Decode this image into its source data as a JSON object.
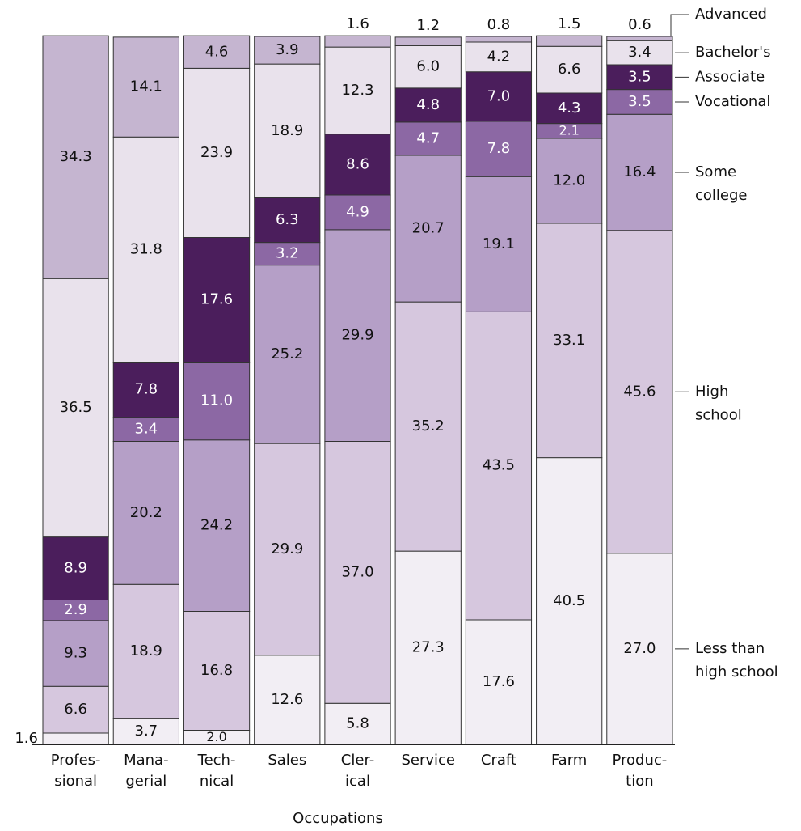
{
  "chart_data": {
    "type": "bar",
    "stacked": true,
    "x_label": "Occupations",
    "categories": [
      "Profes-\nsional",
      "Mana-\ngerial",
      "Tech-\nnical",
      "Sales",
      "Cler-\nical",
      "Service",
      "Craft",
      "Farm",
      "Produc-\ntion"
    ],
    "ylim": [
      0,
      100
    ],
    "series": [
      {
        "name": "Less than high school",
        "color": "#f2eef4",
        "values": [
          1.6,
          3.7,
          2.0,
          12.6,
          5.8,
          27.3,
          17.6,
          40.5,
          27.0
        ],
        "value_labels": [
          "1.6",
          "3.7",
          "2.0",
          "12.6",
          "5.8",
          "27.3",
          "17.6",
          "40.5",
          "27.0"
        ]
      },
      {
        "name": "High school",
        "color": "#d6c7de",
        "values": [
          6.6,
          18.9,
          16.8,
          29.9,
          37.0,
          35.2,
          43.5,
          33.1,
          45.6
        ],
        "value_labels": [
          "6.6",
          "18.9",
          "16.8",
          "29.9",
          "37.0",
          "35.2",
          "43.5",
          "33.1",
          "45.6"
        ]
      },
      {
        "name": "Some college",
        "color": "#b59fc7",
        "values": [
          9.3,
          20.2,
          24.2,
          25.2,
          29.9,
          20.7,
          19.1,
          12.0,
          16.4
        ],
        "value_labels": [
          "9.3",
          "20.2",
          "24.2",
          "25.2",
          "29.9",
          "20.7",
          "19.1",
          "12.0",
          "16.4"
        ]
      },
      {
        "name": "Vocational",
        "color": "#8c68a4",
        "values": [
          2.9,
          3.4,
          11.0,
          3.2,
          4.9,
          4.7,
          7.8,
          2.1,
          3.5
        ],
        "value_labels": [
          "2.9",
          "3.4",
          "11.0",
          "3.2",
          "4.9",
          "4.7",
          "7.8",
          "2.1",
          "3.5"
        ]
      },
      {
        "name": "Associate",
        "color": "#4b1e5c",
        "values": [
          8.9,
          7.8,
          17.6,
          6.3,
          8.6,
          4.8,
          7.0,
          4.3,
          3.5
        ],
        "value_labels": [
          "8.9",
          "7.8",
          "17.6",
          "6.3",
          "8.6",
          "4.8",
          "7.0",
          "4.3",
          "3.5"
        ]
      },
      {
        "name": "Bachelor's",
        "color": "#e9e2ec",
        "values": [
          36.5,
          31.8,
          23.9,
          18.9,
          12.3,
          6.0,
          4.2,
          6.6,
          3.4
        ],
        "value_labels": [
          "36.5",
          "31.8",
          "23.9",
          "18.9",
          "12.3",
          "6.0",
          "4.2",
          "6.6",
          "3.4"
        ]
      },
      {
        "name": "Advanced",
        "color": "#c5b5d0",
        "values": [
          34.3,
          14.1,
          4.6,
          3.9,
          1.6,
          1.2,
          0.8,
          1.5,
          0.6
        ],
        "value_labels": [
          "34.3",
          "14.1",
          "4.6",
          "3.9",
          "1.6",
          "1.2",
          "0.8",
          "1.5",
          "0.6"
        ]
      }
    ]
  }
}
